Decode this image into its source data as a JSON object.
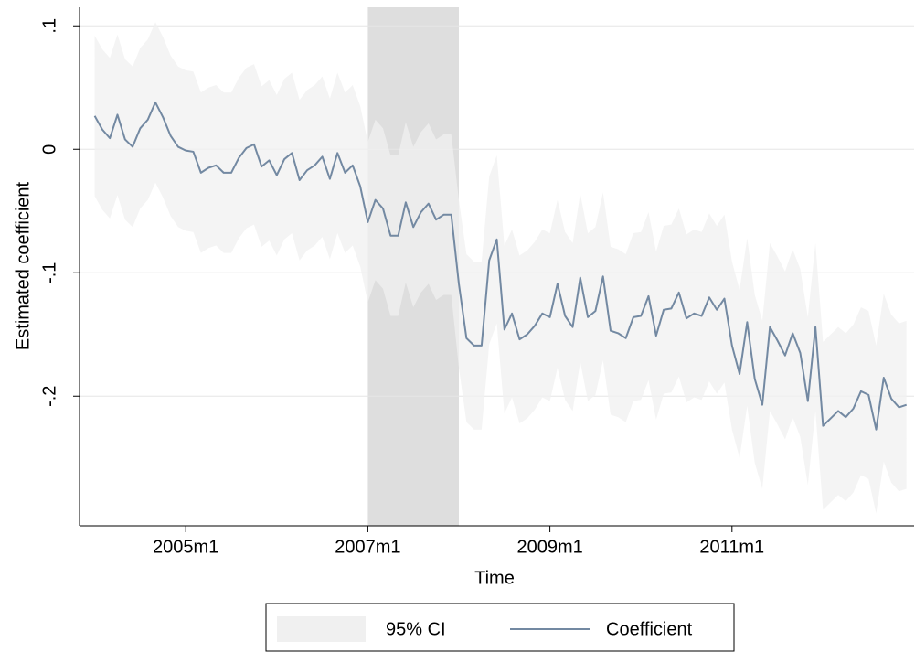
{
  "chart_data": {
    "type": "line",
    "x_label": "Time",
    "y_label": "Estimated coefficient",
    "x": [
      528,
      529,
      530,
      531,
      532,
      533,
      534,
      535,
      536,
      537,
      538,
      539,
      540,
      541,
      542,
      543,
      544,
      545,
      546,
      547,
      548,
      549,
      550,
      551,
      552,
      553,
      554,
      555,
      556,
      557,
      558,
      559,
      560,
      561,
      562,
      563,
      564,
      565,
      566,
      567,
      568,
      569,
      570,
      571,
      572,
      573,
      574,
      575,
      576,
      577,
      578,
      579,
      580,
      581,
      582,
      583,
      584,
      585,
      586,
      587,
      588,
      589,
      590,
      591,
      592,
      593,
      594,
      595,
      596,
      597,
      598,
      599,
      600,
      601,
      602,
      603,
      604,
      605,
      606,
      607,
      608,
      609,
      610,
      611,
      612,
      613,
      614,
      615,
      616,
      617,
      618,
      619,
      620,
      621,
      622,
      623,
      624,
      625,
      626,
      627,
      628,
      629,
      630,
      631,
      632,
      633,
      634,
      635
    ],
    "xlim": [
      526,
      636
    ],
    "xticks": [
      {
        "value": 540,
        "label": "2005m1"
      },
      {
        "value": 564,
        "label": "2007m1"
      },
      {
        "value": 588,
        "label": "2009m1"
      },
      {
        "value": 612,
        "label": "2011m1"
      }
    ],
    "ylim": [
      -0.305,
      0.115
    ],
    "yticks": [
      {
        "value": 0.1,
        "label": ".1"
      },
      0,
      {
        "value": -0.1,
        "label": "-.1"
      },
      {
        "value": -0.2,
        "label": "-.2"
      }
    ],
    "grid": true,
    "shaded_region": {
      "xlim": [
        564,
        576
      ],
      "color": "#dedede"
    },
    "ci": {
      "name": "95% CI",
      "color": "#f0f0f0",
      "upper": [
        0.092,
        0.081,
        0.074,
        0.093,
        0.073,
        0.067,
        0.082,
        0.089,
        0.103,
        0.091,
        0.076,
        0.067,
        0.064,
        0.063,
        0.046,
        0.05,
        0.052,
        0.046,
        0.046,
        0.058,
        0.066,
        0.069,
        0.051,
        0.056,
        0.044,
        0.057,
        0.062,
        0.04,
        0.048,
        0.052,
        0.059,
        0.041,
        0.062,
        0.046,
        0.052,
        0.035,
        0.006,
        0.024,
        0.017,
        -0.005,
        -0.005,
        0.022,
        0.002,
        0.014,
        0.021,
        0.008,
        0.012,
        0.012,
        -0.041,
        -0.085,
        -0.091,
        -0.091,
        -0.022,
        -0.005,
        -0.078,
        -0.065,
        -0.086,
        -0.082,
        -0.075,
        -0.065,
        -0.068,
        -0.041,
        -0.067,
        -0.076,
        -0.036,
        -0.068,
        -0.063,
        -0.035,
        -0.079,
        -0.081,
        -0.085,
        -0.068,
        -0.067,
        -0.051,
        -0.083,
        -0.062,
        -0.061,
        -0.048,
        -0.069,
        -0.065,
        -0.067,
        -0.052,
        -0.062,
        -0.053,
        -0.091,
        -0.114,
        -0.072,
        -0.118,
        -0.139,
        -0.076,
        -0.087,
        -0.099,
        -0.081,
        -0.097,
        -0.136,
        -0.076,
        -0.156,
        -0.15,
        -0.144,
        -0.149,
        -0.142,
        -0.128,
        -0.131,
        -0.159,
        -0.117,
        -0.134,
        -0.141,
        -0.139
      ],
      "lower": [
        -0.038,
        -0.049,
        -0.056,
        -0.037,
        -0.057,
        -0.063,
        -0.048,
        -0.041,
        -0.027,
        -0.039,
        -0.054,
        -0.063,
        -0.066,
        -0.067,
        -0.084,
        -0.08,
        -0.078,
        -0.084,
        -0.084,
        -0.072,
        -0.064,
        -0.061,
        -0.079,
        -0.074,
        -0.086,
        -0.073,
        -0.068,
        -0.09,
        -0.082,
        -0.078,
        -0.071,
        -0.089,
        -0.068,
        -0.084,
        -0.078,
        -0.095,
        -0.124,
        -0.106,
        -0.113,
        -0.135,
        -0.135,
        -0.108,
        -0.128,
        -0.116,
        -0.109,
        -0.122,
        -0.118,
        -0.118,
        -0.177,
        -0.221,
        -0.227,
        -0.227,
        -0.158,
        -0.141,
        -0.214,
        -0.201,
        -0.222,
        -0.218,
        -0.211,
        -0.201,
        -0.204,
        -0.177,
        -0.203,
        -0.212,
        -0.172,
        -0.204,
        -0.199,
        -0.171,
        -0.215,
        -0.217,
        -0.221,
        -0.204,
        -0.203,
        -0.187,
        -0.219,
        -0.198,
        -0.197,
        -0.184,
        -0.205,
        -0.201,
        -0.203,
        -0.188,
        -0.198,
        -0.189,
        -0.227,
        -0.25,
        -0.208,
        -0.254,
        -0.275,
        -0.212,
        -0.223,
        -0.235,
        -0.217,
        -0.233,
        -0.272,
        -0.212,
        -0.292,
        -0.286,
        -0.28,
        -0.285,
        -0.278,
        -0.264,
        -0.267,
        -0.295,
        -0.253,
        -0.27,
        -0.277,
        -0.275
      ]
    },
    "series": [
      {
        "name": "Coefficient",
        "color": "#7389a2",
        "values": [
          0.027,
          0.016,
          0.009,
          0.028,
          0.008,
          0.002,
          0.017,
          0.024,
          0.038,
          0.026,
          0.011,
          0.002,
          -0.001,
          -0.002,
          -0.019,
          -0.015,
          -0.013,
          -0.019,
          -0.019,
          -0.007,
          0.001,
          0.004,
          -0.014,
          -0.009,
          -0.021,
          -0.008,
          -0.003,
          -0.025,
          -0.017,
          -0.013,
          -0.006,
          -0.024,
          -0.003,
          -0.019,
          -0.013,
          -0.03,
          -0.059,
          -0.041,
          -0.048,
          -0.07,
          -0.07,
          -0.043,
          -0.063,
          -0.051,
          -0.044,
          -0.057,
          -0.053,
          -0.053,
          -0.109,
          -0.153,
          -0.159,
          -0.159,
          -0.09,
          -0.073,
          -0.146,
          -0.133,
          -0.154,
          -0.15,
          -0.143,
          -0.133,
          -0.136,
          -0.109,
          -0.135,
          -0.144,
          -0.104,
          -0.136,
          -0.131,
          -0.103,
          -0.147,
          -0.149,
          -0.153,
          -0.136,
          -0.135,
          -0.119,
          -0.151,
          -0.13,
          -0.129,
          -0.116,
          -0.137,
          -0.133,
          -0.135,
          -0.12,
          -0.13,
          -0.121,
          -0.159,
          -0.182,
          -0.14,
          -0.186,
          -0.207,
          -0.144,
          -0.155,
          -0.167,
          -0.149,
          -0.165,
          -0.204,
          -0.144,
          -0.224,
          -0.218,
          -0.212,
          -0.217,
          -0.21,
          -0.196,
          -0.199,
          -0.227,
          -0.185,
          -0.202,
          -0.209,
          -0.207
        ]
      }
    ]
  }
}
